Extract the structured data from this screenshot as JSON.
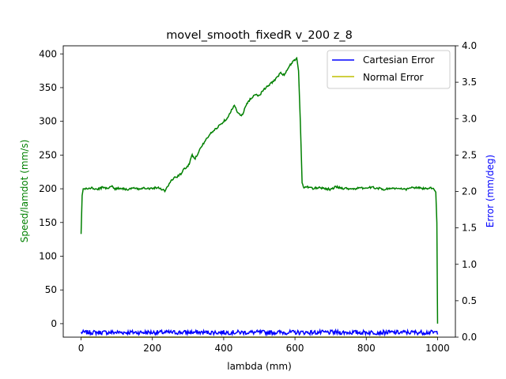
{
  "chart_data": {
    "type": "line",
    "title": "movel_smooth_fixedR v_200 z_8",
    "xlabel": "lambda (mm)",
    "ylabel_left": "Speed/lamdot (mm/s)",
    "ylabel_right": "Error (mm/deg)",
    "xlim": [
      -50,
      1050
    ],
    "ylim_left": [
      -20,
      412
    ],
    "ylim_right": [
      0,
      4.0
    ],
    "x_ticks": [
      0,
      200,
      400,
      600,
      800,
      1000
    ],
    "y_ticks_left": [
      0,
      50,
      100,
      150,
      200,
      250,
      300,
      350,
      400
    ],
    "y_ticks_right": [
      0.0,
      0.5,
      1.0,
      1.5,
      2.0,
      2.5,
      3.0,
      3.5,
      4.0
    ],
    "grid": false,
    "legend_position": "top-right",
    "legend": [
      "Cartesian Error",
      "Normal Error"
    ],
    "series": [
      {
        "name": "Speed",
        "axis": "left",
        "color": "#008000",
        "x": [
          0,
          3,
          6,
          15,
          30,
          45,
          60,
          75,
          85,
          95,
          110,
          130,
          150,
          160,
          175,
          190,
          200,
          215,
          225,
          235,
          245,
          250,
          260,
          270,
          280,
          290,
          300,
          305,
          310,
          315,
          320,
          330,
          340,
          350,
          360,
          370,
          380,
          390,
          400,
          410,
          420,
          430,
          440,
          445,
          450,
          455,
          460,
          465,
          470,
          480,
          490,
          500,
          510,
          520,
          530,
          540,
          550,
          560,
          570,
          580,
          585,
          590,
          595,
          600,
          605,
          610,
          615,
          620,
          625,
          635,
          650,
          665,
          680,
          700,
          715,
          730,
          760,
          790,
          820,
          850,
          870,
          890,
          910,
          930,
          950,
          970,
          985,
          990,
          995,
          998,
          1000
        ],
        "y": [
          133,
          190,
          200,
          200,
          201,
          199,
          202,
          201,
          204,
          200,
          201,
          199,
          201,
          199,
          202,
          200,
          201,
          202,
          200,
          197,
          205,
          210,
          216,
          218,
          222,
          230,
          233,
          240,
          250,
          248,
          245,
          255,
          265,
          272,
          280,
          285,
          290,
          295,
          300,
          305,
          315,
          323,
          313,
          310,
          308,
          312,
          320,
          326,
          330,
          336,
          340,
          338,
          346,
          350,
          355,
          360,
          365,
          372,
          368,
          378,
          382,
          386,
          390,
          390,
          394,
          375,
          300,
          210,
          201,
          203,
          200,
          202,
          201,
          199,
          203,
          201,
          200,
          201,
          202,
          199,
          201,
          200,
          199,
          202,
          201,
          200,
          201,
          199,
          195,
          150,
          0
        ]
      },
      {
        "name": "Cartesian Error",
        "axis": "right",
        "color": "#0000ff",
        "x_start": 0,
        "x_end": 1000,
        "baseline": 0.065,
        "amplitude": 0.03
      },
      {
        "name": "Normal Error",
        "axis": "right",
        "color": "#bfbf00",
        "x_start": 0,
        "x_end": 1000,
        "baseline": 0.0,
        "amplitude": 0.0
      }
    ]
  }
}
